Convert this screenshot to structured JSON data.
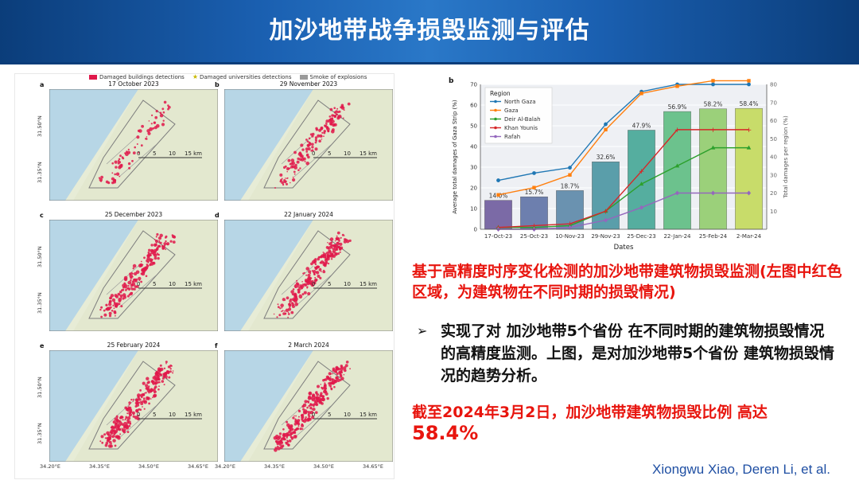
{
  "header": {
    "title": "加沙地带战争损毁监测与评估"
  },
  "maps": {
    "legend": [
      "Damaged buildings detections",
      "Damaged universities detections",
      "Smoke of explosions"
    ],
    "legend_colors": [
      "#e0184a",
      "#f2e600",
      "#9a9a9a"
    ],
    "panels": [
      {
        "label": "a",
        "date": "17 October 2023"
      },
      {
        "label": "b",
        "date": "29 November 2023"
      },
      {
        "label": "c",
        "date": "25 December 2023"
      },
      {
        "label": "d",
        "date": "22 January 2024"
      },
      {
        "label": "e",
        "date": "25 February 2024"
      },
      {
        "label": "f",
        "date": "2 March 2024"
      }
    ],
    "y_ticks": [
      "31.50°N",
      "31.35°N"
    ],
    "x_ticks": [
      "34.20°E",
      "34.35°E",
      "34.50°E",
      "34.65°E"
    ],
    "scale_labels": [
      "0",
      "5",
      "10",
      "15 km"
    ]
  },
  "chart_data": {
    "type": "bar",
    "panel_label": "b",
    "categories": [
      "17-Oct-23",
      "25-Oct-23",
      "10-Nov-23",
      "29-Nov-23",
      "25-Dec-23",
      "22-Jan-24",
      "25-Feb-24",
      "2-Mar-24"
    ],
    "values": [
      14.0,
      15.7,
      18.7,
      32.6,
      47.9,
      56.9,
      58.2,
      58.4
    ],
    "bar_labels": [
      "14.0%",
      "15.7%",
      "18.7%",
      "32.6%",
      "47.9%",
      "56.9%",
      "58.2%",
      "58.4%"
    ],
    "bar_colors": [
      "#7b6aa6",
      "#6d7fae",
      "#6a92b0",
      "#5a9eaa",
      "#55ae9f",
      "#6cc28d",
      "#9bd07a",
      "#c8dc6a"
    ],
    "xlabel": "Dates",
    "ylabel": "Average total damages of Gaza Strip (%)",
    "y2label": "Total damages per region (%)",
    "ylim": [
      0,
      70
    ],
    "y2lim": [
      0,
      80
    ],
    "y2_ticks": [
      10,
      20,
      30,
      40,
      50,
      60,
      70,
      80
    ],
    "legend_title": "Region",
    "series": [
      {
        "name": "North Gaza",
        "color": "#1f77b4",
        "marker": "circle",
        "values": [
          27,
          31,
          34,
          58,
          76,
          80,
          80,
          80
        ]
      },
      {
        "name": "Gaza",
        "color": "#ff7f0e",
        "marker": "square",
        "values": [
          19,
          23,
          30,
          55,
          75,
          79,
          82,
          82
        ]
      },
      {
        "name": "Deir Al-Balah",
        "color": "#2ca02c",
        "marker": "triangle",
        "values": [
          1,
          1,
          2,
          10,
          25,
          35,
          45,
          45
        ]
      },
      {
        "name": "Khan Younis",
        "color": "#d62728",
        "marker": "plus",
        "values": [
          1,
          2,
          3,
          10,
          32,
          55,
          55,
          55
        ]
      },
      {
        "name": "Rafah",
        "color": "#9467bd",
        "marker": "diamond",
        "values": [
          0,
          0,
          1,
          5,
          12,
          20,
          20,
          20
        ]
      }
    ]
  },
  "main": {
    "red_title": "基于高精度时序变化检测的加沙地带建筑物损毁监测(左图中红色区域，为建筑物在不同时期的损毁情况)",
    "bullet_arrow": "➢",
    "bullet_text": "实现了对 加沙地带5个省份 在不同时期的建筑物损毁情况 的高精度监测。上图，是对加沙地带5个省份 建筑物损毁情况的趋势分析。",
    "conclusion_text": "截至2024年3月2日，加沙地带建筑物损毁比例 高达",
    "conclusion_value": "58.4%"
  },
  "footer": {
    "authors": "Xiongwu Xiao, Deren Li, et al."
  }
}
